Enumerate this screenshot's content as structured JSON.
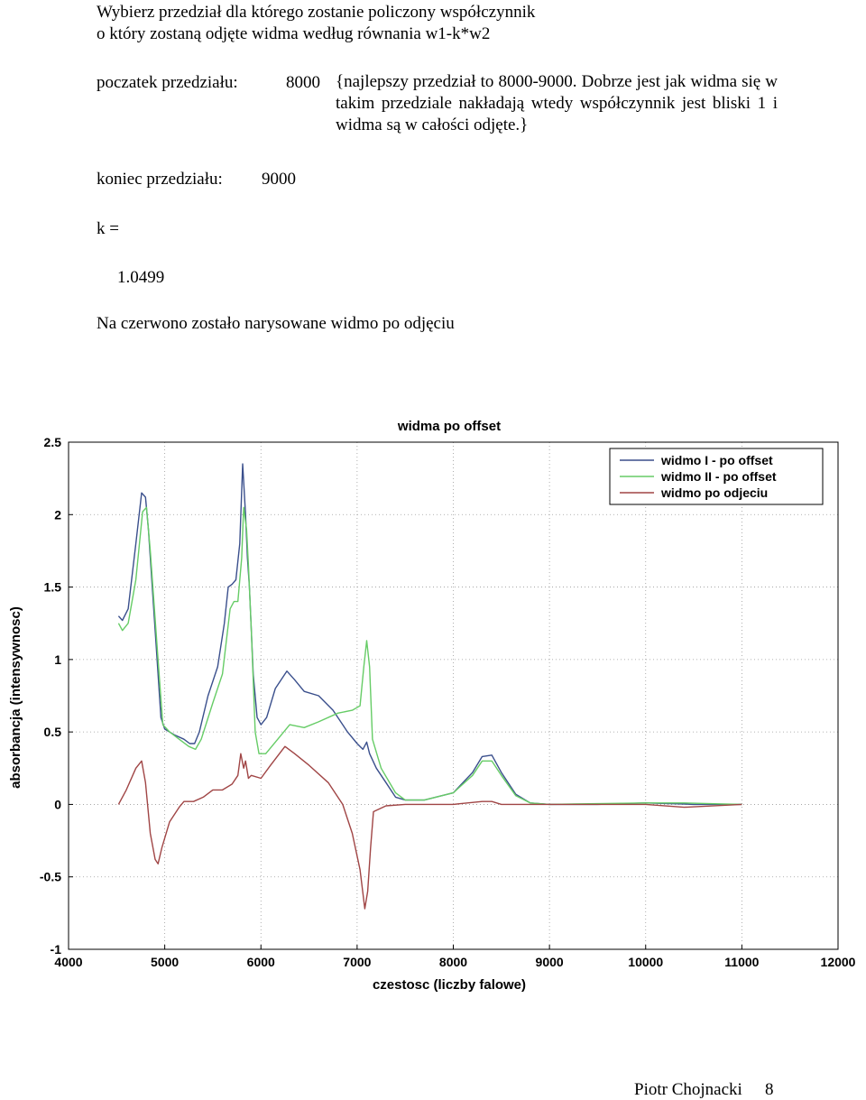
{
  "doc": {
    "intro_line1": "Wybierz przedział dla którego zostanie policzony współczynnik",
    "intro_line2": "o który zostaną odjęte widma według równania w1-k*w2",
    "start_label": "poczatek przedziału:",
    "start_value": "8000",
    "note": "{najlepszy przedział to 8000-9000. Dobrze jest jak widma się w takim przedziale nakładają wtedy współczynnik jest bliski 1 i widma są w całości odjęte.}",
    "end_label": "koniec przedziału:",
    "end_value": "9000",
    "k_label": "k =",
    "k_value": "1.0499",
    "caption": "Na czerwono zostało narysowane widmo po odjęciu",
    "footer_author": "Piotr Chojnacki",
    "footer_page": "8"
  },
  "chart_data": {
    "type": "line",
    "title": "widma po offset",
    "xlabel": "czestosc (liczby falowe)",
    "ylabel": "absorbancja (intensywnosc)",
    "xlim": [
      4000,
      12000
    ],
    "ylim": [
      -1,
      2.5
    ],
    "xticks": [
      4000,
      5000,
      6000,
      7000,
      8000,
      9000,
      10000,
      11000,
      12000
    ],
    "yticks": [
      -1,
      -0.5,
      0,
      0.5,
      1,
      1.5,
      2,
      2.5
    ],
    "grid": true,
    "legend_position": "top-right",
    "series": [
      {
        "name": "widmo I  - po offset",
        "color": "#3a4f8c",
        "points": [
          [
            4520,
            1.3
          ],
          [
            4560,
            1.27
          ],
          [
            4620,
            1.35
          ],
          [
            4700,
            1.8
          ],
          [
            4760,
            2.15
          ],
          [
            4800,
            2.12
          ],
          [
            4830,
            1.9
          ],
          [
            4900,
            1.2
          ],
          [
            4960,
            0.6
          ],
          [
            5000,
            0.52
          ],
          [
            5100,
            0.48
          ],
          [
            5200,
            0.45
          ],
          [
            5260,
            0.42
          ],
          [
            5310,
            0.42
          ],
          [
            5360,
            0.5
          ],
          [
            5450,
            0.75
          ],
          [
            5550,
            0.95
          ],
          [
            5620,
            1.25
          ],
          [
            5660,
            1.5
          ],
          [
            5700,
            1.52
          ],
          [
            5740,
            1.55
          ],
          [
            5780,
            1.8
          ],
          [
            5810,
            2.35
          ],
          [
            5840,
            2.0
          ],
          [
            5860,
            1.7
          ],
          [
            5880,
            1.5
          ],
          [
            5920,
            0.9
          ],
          [
            5960,
            0.6
          ],
          [
            6000,
            0.55
          ],
          [
            6060,
            0.6
          ],
          [
            6150,
            0.8
          ],
          [
            6270,
            0.92
          ],
          [
            6350,
            0.86
          ],
          [
            6450,
            0.78
          ],
          [
            6600,
            0.75
          ],
          [
            6750,
            0.65
          ],
          [
            6900,
            0.5
          ],
          [
            7000,
            0.42
          ],
          [
            7060,
            0.38
          ],
          [
            7100,
            0.43
          ],
          [
            7130,
            0.35
          ],
          [
            7200,
            0.25
          ],
          [
            7300,
            0.15
          ],
          [
            7400,
            0.05
          ],
          [
            7500,
            0.03
          ],
          [
            7700,
            0.03
          ],
          [
            8000,
            0.08
          ],
          [
            8200,
            0.22
          ],
          [
            8300,
            0.33
          ],
          [
            8400,
            0.34
          ],
          [
            8500,
            0.22
          ],
          [
            8650,
            0.07
          ],
          [
            8800,
            0.01
          ],
          [
            9000,
            0.0
          ],
          [
            9500,
            0.0
          ],
          [
            10000,
            0.01
          ],
          [
            10500,
            0.0
          ],
          [
            11000,
            0.0
          ]
        ]
      },
      {
        "name": "widmo II - po offset",
        "color": "#66cc66",
        "points": [
          [
            4520,
            1.25
          ],
          [
            4560,
            1.2
          ],
          [
            4620,
            1.25
          ],
          [
            4700,
            1.55
          ],
          [
            4770,
            2.02
          ],
          [
            4810,
            2.05
          ],
          [
            4850,
            1.75
          ],
          [
            4930,
            1.0
          ],
          [
            4980,
            0.55
          ],
          [
            5050,
            0.5
          ],
          [
            5150,
            0.45
          ],
          [
            5250,
            0.4
          ],
          [
            5320,
            0.38
          ],
          [
            5380,
            0.45
          ],
          [
            5500,
            0.7
          ],
          [
            5600,
            0.9
          ],
          [
            5680,
            1.35
          ],
          [
            5720,
            1.4
          ],
          [
            5760,
            1.4
          ],
          [
            5800,
            1.7
          ],
          [
            5820,
            2.05
          ],
          [
            5850,
            1.9
          ],
          [
            5870,
            1.65
          ],
          [
            5900,
            1.2
          ],
          [
            5940,
            0.5
          ],
          [
            5980,
            0.35
          ],
          [
            6050,
            0.35
          ],
          [
            6150,
            0.43
          ],
          [
            6300,
            0.55
          ],
          [
            6450,
            0.53
          ],
          [
            6600,
            0.57
          ],
          [
            6800,
            0.63
          ],
          [
            6950,
            0.65
          ],
          [
            7030,
            0.68
          ],
          [
            7070,
            0.95
          ],
          [
            7100,
            1.13
          ],
          [
            7130,
            0.95
          ],
          [
            7160,
            0.45
          ],
          [
            7250,
            0.25
          ],
          [
            7400,
            0.08
          ],
          [
            7500,
            0.03
          ],
          [
            7700,
            0.03
          ],
          [
            8000,
            0.08
          ],
          [
            8200,
            0.2
          ],
          [
            8300,
            0.3
          ],
          [
            8400,
            0.3
          ],
          [
            8500,
            0.2
          ],
          [
            8650,
            0.06
          ],
          [
            8800,
            0.01
          ],
          [
            9000,
            0.0
          ],
          [
            10000,
            0.01
          ],
          [
            10400,
            0.01
          ],
          [
            11000,
            0.0
          ]
        ]
      },
      {
        "name": "widmo po odjeciu",
        "color": "#a04545",
        "points": [
          [
            4520,
            0.0
          ],
          [
            4600,
            0.1
          ],
          [
            4700,
            0.25
          ],
          [
            4760,
            0.3
          ],
          [
            4800,
            0.15
          ],
          [
            4850,
            -0.2
          ],
          [
            4900,
            -0.38
          ],
          [
            4930,
            -0.41
          ],
          [
            4970,
            -0.3
          ],
          [
            5050,
            -0.12
          ],
          [
            5150,
            -0.02
          ],
          [
            5200,
            0.02
          ],
          [
            5300,
            0.02
          ],
          [
            5400,
            0.05
          ],
          [
            5500,
            0.1
          ],
          [
            5600,
            0.1
          ],
          [
            5700,
            0.14
          ],
          [
            5760,
            0.2
          ],
          [
            5790,
            0.35
          ],
          [
            5820,
            0.25
          ],
          [
            5840,
            0.3
          ],
          [
            5870,
            0.18
          ],
          [
            5900,
            0.2
          ],
          [
            6000,
            0.18
          ],
          [
            6100,
            0.27
          ],
          [
            6250,
            0.4
          ],
          [
            6350,
            0.35
          ],
          [
            6500,
            0.27
          ],
          [
            6700,
            0.15
          ],
          [
            6850,
            0.0
          ],
          [
            6950,
            -0.2
          ],
          [
            7030,
            -0.45
          ],
          [
            7080,
            -0.72
          ],
          [
            7110,
            -0.6
          ],
          [
            7140,
            -0.3
          ],
          [
            7170,
            -0.05
          ],
          [
            7300,
            -0.01
          ],
          [
            7500,
            0.0
          ],
          [
            8000,
            0.0
          ],
          [
            8300,
            0.02
          ],
          [
            8400,
            0.02
          ],
          [
            8500,
            0.0
          ],
          [
            9000,
            0.0
          ],
          [
            10000,
            0.0
          ],
          [
            10400,
            -0.02
          ],
          [
            11000,
            0.0
          ]
        ]
      }
    ]
  }
}
